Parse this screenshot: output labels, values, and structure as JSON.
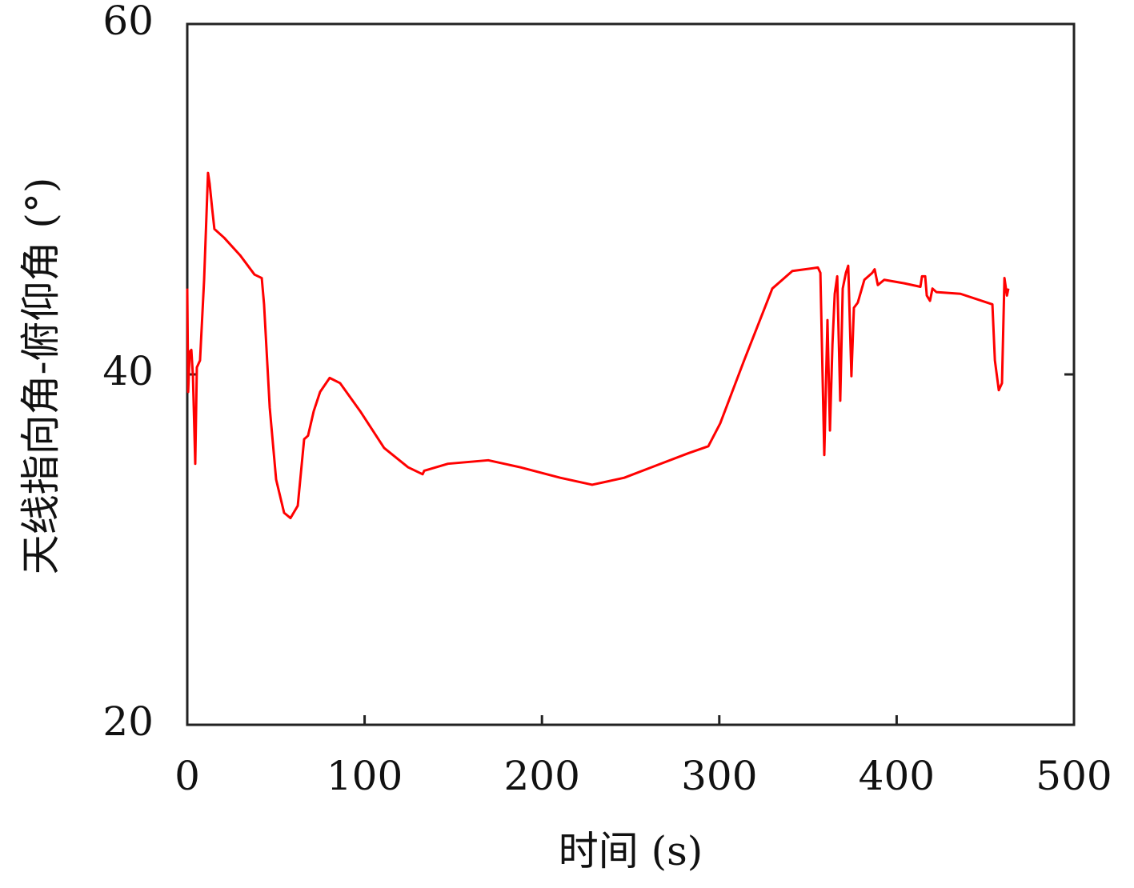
{
  "chart_data": {
    "type": "line",
    "xlabel": "时间 (s)",
    "ylabel": "天线指向角-俯仰角 (°)",
    "xlim": [
      0,
      500
    ],
    "ylim": [
      20,
      60
    ],
    "xticks": [
      0,
      100,
      200,
      300,
      400,
      500
    ],
    "yticks": [
      20,
      40,
      60
    ],
    "grid": false,
    "series": [
      {
        "color": "#ff0000",
        "x": [
          0,
          0.5,
          1.4,
          2.3,
          3.2,
          4.5,
          5.4,
          7.2,
          9.5,
          11.7,
          12.6,
          14,
          15.3,
          20.8,
          29.8,
          37.9,
          42,
          43.3,
          46.5,
          50.1,
          54.6,
          58.2,
          62.3,
          65.9,
          68.1,
          71.3,
          74.9,
          80.3,
          86.2,
          97.5,
          111,
          124.5,
          132.7,
          133.6,
          147,
          169.7,
          187.7,
          210.3,
          228.3,
          246.4,
          264.4,
          282.5,
          293.8,
          300.5,
          314,
          329.9,
          341.2,
          355.6,
          357,
          359.2,
          361,
          362.4,
          363.8,
          365.1,
          366.5,
          368.2,
          369.6,
          371.4,
          372.7,
          374.5,
          375.9,
          378.1,
          381.8,
          386.3,
          387.6,
          389.4,
          393,
          404.3,
          413.4,
          414.3,
          416.1,
          417,
          418.8,
          420.2,
          422.4,
          436,
          454,
          455.4,
          457.6,
          459.4,
          460.8,
          462.2,
          463
        ],
        "values": [
          44.9,
          39.0,
          41.3,
          41.4,
          39.9,
          34.9,
          40.4,
          40.8,
          45.4,
          51.5,
          50.9,
          49.5,
          48.3,
          47.8,
          46.8,
          45.7,
          45.5,
          44.0,
          38.1,
          34.0,
          32.1,
          31.8,
          32.5,
          36.3,
          36.5,
          37.9,
          39.0,
          39.8,
          39.5,
          37.9,
          35.8,
          34.7,
          34.3,
          34.5,
          34.9,
          35.1,
          34.7,
          34.1,
          33.7,
          34.1,
          34.8,
          35.5,
          35.9,
          37.2,
          40.8,
          44.9,
          45.9,
          46.1,
          45.8,
          35.4,
          43.1,
          36.8,
          41.7,
          44.6,
          45.6,
          38.5,
          44.9,
          45.8,
          46.2,
          39.9,
          43.8,
          44.1,
          45.4,
          45.8,
          46.0,
          45.1,
          45.4,
          45.2,
          45.0,
          45.6,
          45.6,
          44.5,
          44.2,
          44.9,
          44.7,
          44.6,
          44.0,
          40.8,
          39.1,
          39.5,
          45.5,
          44.5,
          44.9
        ]
      }
    ]
  }
}
